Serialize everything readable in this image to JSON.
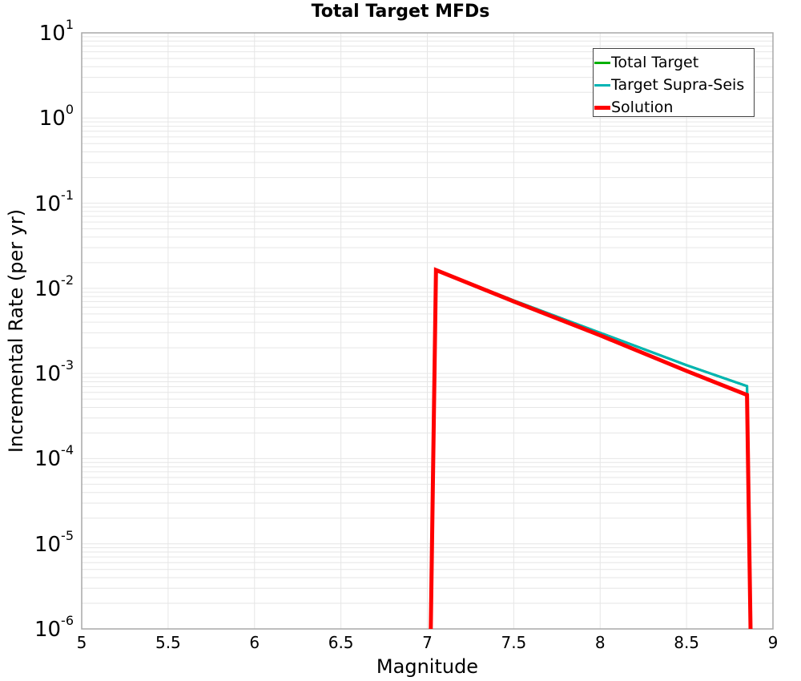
{
  "chart_data": {
    "type": "line",
    "title": "Total Target MFDs",
    "xlabel": "Magnitude",
    "ylabel": "Incremental Rate (per yr)",
    "xlim": [
      5,
      9
    ],
    "ylim": [
      1e-06,
      10
    ],
    "yscale": "log",
    "grid": true,
    "legend_position": "upper right",
    "x_ticks": [
      "5",
      "5.5",
      "6",
      "6.5",
      "7",
      "7.5",
      "8",
      "8.5",
      "9"
    ],
    "y_ticks": [
      {
        "base": "10",
        "exp": "1"
      },
      {
        "base": "10",
        "exp": "0"
      },
      {
        "base": "10",
        "exp": "-1"
      },
      {
        "base": "10",
        "exp": "-2"
      },
      {
        "base": "10",
        "exp": "-3"
      },
      {
        "base": "10",
        "exp": "-4"
      },
      {
        "base": "10",
        "exp": "-5"
      },
      {
        "base": "10",
        "exp": "-6"
      }
    ],
    "series": [
      {
        "name": "Total Target",
        "color": "#00b000",
        "width": 3,
        "x": [
          7.02,
          7.05,
          7.5,
          8.0,
          8.5,
          8.85,
          8.87
        ],
        "y": [
          1e-06,
          0.0164,
          0.0072,
          0.003,
          0.00125,
          0.00071,
          1e-06
        ]
      },
      {
        "name": "Target Supra-Seis",
        "color": "#00b4b4",
        "width": 3,
        "x": [
          7.02,
          7.05,
          7.5,
          8.0,
          8.5,
          8.85,
          8.87
        ],
        "y": [
          1e-06,
          0.0164,
          0.0072,
          0.003,
          0.00125,
          0.00071,
          1e-06
        ]
      },
      {
        "name": "Solution",
        "color": "#ff0000",
        "width": 5,
        "x": [
          7.02,
          7.05,
          7.5,
          8.0,
          8.5,
          8.85,
          8.87
        ],
        "y": [
          1e-06,
          0.0164,
          0.007,
          0.0028,
          0.00107,
          0.00056,
          1e-06
        ]
      }
    ]
  }
}
